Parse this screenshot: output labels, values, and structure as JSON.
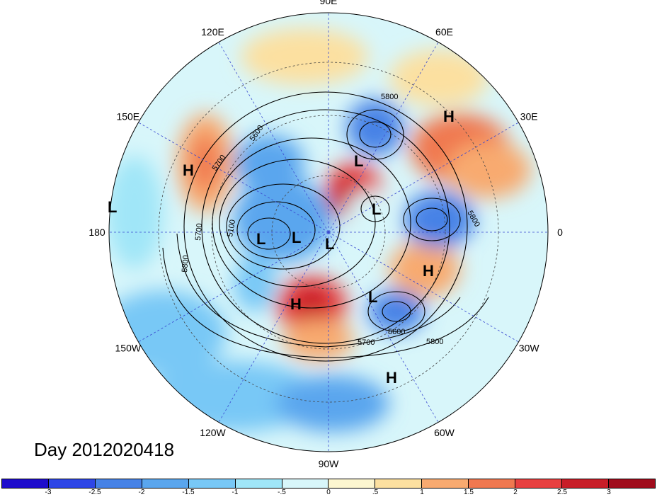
{
  "title": "Day 2012020418",
  "longitude_labels": [
    {
      "text": "90E",
      "lon": 90
    },
    {
      "text": "60E",
      "lon": 60
    },
    {
      "text": "30E",
      "lon": 30
    },
    {
      "text": "0",
      "lon": 0
    },
    {
      "text": "30W",
      "lon": -30
    },
    {
      "text": "60W",
      "lon": -60
    },
    {
      "text": "90W",
      "lon": -90
    },
    {
      "text": "120W",
      "lon": -120
    },
    {
      "text": "150W",
      "lon": -150
    },
    {
      "text": "180",
      "lon": 180
    },
    {
      "text": "150E",
      "lon": 150
    },
    {
      "text": "120E",
      "lon": 120
    }
  ],
  "pressure_centers": [
    {
      "type": "H",
      "name": "high-central-us"
    },
    {
      "type": "H",
      "name": "high-atlantic"
    },
    {
      "type": "H",
      "name": "high-caribbean"
    },
    {
      "type": "H",
      "name": "high-russia"
    },
    {
      "type": "H",
      "name": "high-east-asia"
    },
    {
      "type": "L",
      "name": "low-north-pacific"
    },
    {
      "type": "L",
      "name": "low-siberia"
    },
    {
      "type": "L",
      "name": "low-arctic"
    },
    {
      "type": "L",
      "name": "low-canada-1"
    },
    {
      "type": "L",
      "name": "low-canada-2"
    },
    {
      "type": "L",
      "name": "low-labrador"
    },
    {
      "type": "L",
      "name": "low-greenland"
    }
  ],
  "contour_labels": [
    "5800",
    "5700",
    "5600",
    "5100",
    "5700",
    "5800",
    "5600",
    "5700",
    "5800",
    "5800"
  ],
  "colorbar": {
    "colors": [
      "#1e0ccc",
      "#2e46e6",
      "#4682e6",
      "#5aa6ee",
      "#78c8f6",
      "#a0e6f8",
      "#d8f6fa",
      "#fcf6d0",
      "#fce0a0",
      "#f8aa70",
      "#f07850",
      "#e84040",
      "#c81e28",
      "#a00c1c"
    ],
    "ticks": [
      "-3",
      "-2.5",
      "-2",
      "-1.5",
      "-1",
      "-.5",
      "0",
      ".5",
      "1",
      "1.5",
      "2",
      "2.5",
      "3"
    ]
  }
}
